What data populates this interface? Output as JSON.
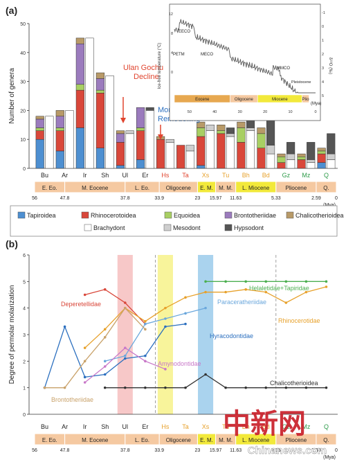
{
  "panel_a_label": "(a)",
  "panel_b_label": "(b)",
  "ages": [
    "56",
    "47.8",
    "37.8",
    "33.9",
    "23",
    "15.97",
    "11.63",
    "5.33",
    "2.59",
    "0"
  ],
  "ages_unit": "(Mya)",
  "epochs_a": [
    "E. Eo.",
    "M. Eocene",
    "L. Eo.",
    "Oligocene",
    "E. M.",
    "M. M.",
    "L. Miocene",
    "Pliocene",
    "Q."
  ],
  "epochs_b": [
    "E. Eo.",
    "M. Eocene",
    "L. Eo.",
    "Oligocene",
    "E. M.",
    "M. M.",
    "L. Miocene",
    "Pliocene",
    "Q."
  ],
  "colors": {
    "tapiroidea": "#4d8fd1",
    "rhinocerotoidea": "#d9473a",
    "equoidea": "#a8cf63",
    "brontotheriidae": "#9b7bbd",
    "chalicotherioidea": "#b89a68",
    "brachydont": "#ffffff",
    "mesodont": "#cfcfcf",
    "hypsodont": "#555555",
    "epoch_band": "#f5c9a1",
    "highlight": "#f2e93a",
    "stage_red": "#e0442e",
    "stage_green": "#2e9b4a",
    "stage_orange": "#e7a12b"
  },
  "legend": {
    "tapiroidea": "Tapiroidea",
    "rhinocerotoidea": "Rhinocerotoidea",
    "equoidea": "Equoidea",
    "brontotheriidae": "Brontotheriidae",
    "chalicotherioidea": "Chalicotherioidea",
    "brachydont": "Brachydont",
    "mesodont": "Mesodont",
    "hypsodont": "Hypsodont"
  },
  "annotations_a": {
    "ulan_1": "Ulan Gochu",
    "ulan_2": "Decline",
    "mongolian_1": "Mongolian",
    "mongolian_2": "Remodelling"
  },
  "inset": {
    "ylabel": "Ice-free temperature (°C)",
    "y2label": "δ¹⁸O (‰)",
    "xunit": "(Mya)",
    "events": [
      "PETM",
      "EECO",
      "MECO",
      "MMCO"
    ],
    "pleistocene": "Pleistocene",
    "epochs": [
      "Eocene",
      "Oligocene",
      "Miocene",
      "Plio"
    ],
    "ticks_left": [
      "12",
      "8",
      "4",
      "0"
    ],
    "ticks_right": [
      "-1",
      "0",
      "1",
      "2",
      "3",
      "4",
      "5"
    ],
    "ticks_x": [
      "50",
      "40",
      "30",
      "20",
      "10",
      "0"
    ]
  },
  "chart_data": [
    {
      "type": "bar",
      "panel": "a",
      "ylabel": "Number of genera",
      "ylim": [
        0,
        50
      ],
      "yticks": [
        0,
        10,
        20,
        30,
        40,
        50
      ],
      "categories": [
        "Bu",
        "Ar",
        "Ir",
        "Sh",
        "Ul",
        "Er",
        "Hs",
        "Ta",
        "Xs",
        "Tu",
        "Bh",
        "Bd",
        "Gz",
        "Mz",
        "Q"
      ],
      "category_colors": [
        "#222222",
        "#222222",
        "#222222",
        "#222222",
        "#222222",
        "#222222",
        "#e0442e",
        "#e0442e",
        "#e7a12b",
        "#e7a12b",
        "#e7a12b",
        "#e7a12b",
        "#2e9b4a",
        "#2e9b4a",
        "#2e9b4a"
      ],
      "taxa_stack": [
        {
          "name": "Tapiroidea",
          "color": "#4d8fd1",
          "values": [
            10,
            6,
            14,
            7,
            1,
            3,
            0,
            0,
            1,
            0,
            0,
            0,
            0,
            0,
            2
          ]
        },
        {
          "name": "Rhinocerotoidea",
          "color": "#d9473a",
          "values": [
            3,
            7,
            13,
            19,
            8,
            10,
            10,
            8,
            10,
            12,
            9,
            7,
            2,
            3,
            3
          ]
        },
        {
          "name": "Equoidea",
          "color": "#a8cf63",
          "values": [
            1,
            1,
            2,
            1,
            0,
            1,
            0,
            0,
            3,
            1,
            5,
            5,
            2,
            1,
            1
          ]
        },
        {
          "name": "Brontotheriidae",
          "color": "#9b7bbd",
          "values": [
            3,
            4,
            14,
            4,
            3,
            7,
            0,
            0,
            0,
            0,
            0,
            0,
            0,
            0,
            0
          ]
        },
        {
          "name": "Chalicotherioidea",
          "color": "#b89a68",
          "values": [
            1,
            2,
            2,
            2,
            1,
            0,
            1,
            0,
            2,
            2,
            2,
            2,
            1,
            1,
            1
          ]
        }
      ],
      "crown_type_stack": [
        {
          "name": "Brachydont",
          "color": "#ffffff",
          "values": [
            18,
            20,
            45,
            32,
            12,
            20,
            9,
            6,
            13,
            11,
            13,
            5,
            3,
            2,
            3
          ]
        },
        {
          "name": "Mesodont",
          "color": "#cfcfcf",
          "values": [
            0,
            0,
            0,
            0,
            1,
            0,
            1,
            2,
            2,
            1,
            1,
            3,
            2,
            1,
            2
          ]
        },
        {
          "name": "Hypsodont",
          "color": "#555555",
          "values": [
            0,
            0,
            0,
            0,
            0,
            1,
            0,
            0,
            0,
            2,
            4,
            10,
            4,
            6,
            7
          ]
        }
      ]
    },
    {
      "type": "line",
      "panel": "b",
      "ylabel": "Degree of permolar molarization",
      "ylim": [
        0,
        6
      ],
      "yticks": [
        0,
        1,
        2,
        3,
        4,
        5,
        6
      ],
      "x": [
        "Bu",
        "Ar",
        "Ir",
        "Sh",
        "Ul",
        "Er",
        "Hs",
        "Ta",
        "Xs",
        "Tu",
        "Bh",
        "Bd",
        "Gz",
        "Mz",
        "Q"
      ],
      "category_colors": [
        "#222222",
        "#222222",
        "#222222",
        "#222222",
        "#222222",
        "#222222",
        "#e7a12b",
        "#e7a12b",
        "#e7a12b",
        "#e7a12b",
        "#e7a12b",
        "#e7a12b",
        "#2e9b4a",
        "#2e9b4a",
        "#2e9b4a"
      ],
      "highlight_bands": [
        {
          "category": "Ul",
          "color": "#f4b6b6"
        },
        {
          "category": "Hs",
          "color": "#f5f07a"
        },
        {
          "category": "Xs",
          "color": "#8ec4e8"
        }
      ],
      "dashed_dividers_after": [
        "Er",
        "Bd"
      ],
      "series": [
        {
          "name": "Deperetellidae",
          "color": "#d9473a",
          "values": [
            1,
            null,
            4.5,
            4.7,
            4.2,
            3.4,
            null,
            null,
            null,
            null,
            null,
            null,
            null,
            null,
            null
          ],
          "label_pos": "left"
        },
        {
          "name": "Helaletidae+Tapiridae",
          "color": "#4caf50",
          "values": [
            null,
            null,
            null,
            null,
            null,
            null,
            null,
            null,
            5,
            5,
            5,
            5,
            5,
            5,
            5
          ],
          "label_pos": "right"
        },
        {
          "name": "Rhinocerotidae",
          "color": "#e7a12b",
          "values": [
            null,
            null,
            2.5,
            3.2,
            4,
            3.5,
            4,
            4.4,
            4.6,
            4.6,
            4.7,
            4.6,
            4.2,
            4.6,
            4.8
          ],
          "label_pos": "right"
        },
        {
          "name": "Paraceratheriidae",
          "color": "#6aa7dc",
          "values": [
            null,
            null,
            null,
            2,
            2.2,
            3.4,
            3.6,
            3.8,
            4.0,
            null,
            null,
            null,
            null,
            null,
            null
          ],
          "label_pos": "right"
        },
        {
          "name": "Hyracodontidae",
          "color": "#2b6fbf",
          "values": [
            1,
            3.3,
            1.4,
            1.5,
            2.1,
            2.2,
            3.3,
            3.4,
            null,
            null,
            null,
            null,
            null,
            null,
            null
          ],
          "label_pos": "right"
        },
        {
          "name": "Amynodontidae",
          "color": "#c878c8",
          "values": [
            null,
            null,
            1.2,
            1.8,
            2.5,
            2.0,
            1.7,
            null,
            null,
            null,
            null,
            null,
            null,
            null,
            null
          ],
          "label_pos": "right"
        },
        {
          "name": "Chalicotherioidea",
          "color": "#333333",
          "values": [
            null,
            null,
            null,
            1,
            1,
            1,
            1,
            1,
            1.5,
            1,
            1,
            1,
            1,
            1,
            1
          ],
          "label_pos": "right"
        },
        {
          "name": "Brontotheriidae",
          "color": "#c9a26a",
          "values": [
            1,
            1,
            2,
            2.9,
            4,
            3.2,
            null,
            null,
            null,
            null,
            null,
            null,
            null,
            null,
            null
          ],
          "label_pos": "below"
        }
      ]
    }
  ],
  "watermark": {
    "cn": "中新网",
    "en": "Chinanews.com"
  }
}
